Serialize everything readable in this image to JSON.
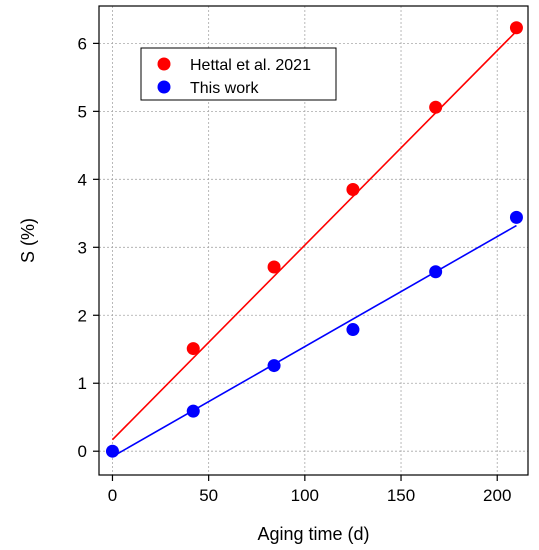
{
  "chart_data": {
    "type": "scatter",
    "xlabel": "Aging time (d)",
    "ylabel": "S (%)",
    "xlim": [
      -7,
      216
    ],
    "ylim": [
      -0.35,
      6.55
    ],
    "xticks": [
      0,
      50,
      100,
      150,
      200
    ],
    "yticks": [
      0,
      1,
      2,
      3,
      4,
      5,
      6
    ],
    "grid": true,
    "legend_position": "top-left",
    "series": [
      {
        "name": "Hettal et al. 2021",
        "color": "#ff0000",
        "x": [
          42,
          84,
          125,
          168,
          210
        ],
        "y": [
          1.51,
          2.71,
          3.85,
          5.06,
          6.23
        ],
        "fit": {
          "x": [
            0,
            210
          ],
          "y": [
            0.17,
            6.18
          ]
        }
      },
      {
        "name": "This work",
        "color": "#0000ff",
        "x": [
          0,
          42,
          84,
          125,
          168,
          210
        ],
        "y": [
          0.0,
          0.59,
          1.26,
          1.79,
          2.64,
          3.44
        ],
        "fit": {
          "x": [
            0,
            210
          ],
          "y": [
            -0.08,
            3.32
          ]
        }
      }
    ]
  }
}
